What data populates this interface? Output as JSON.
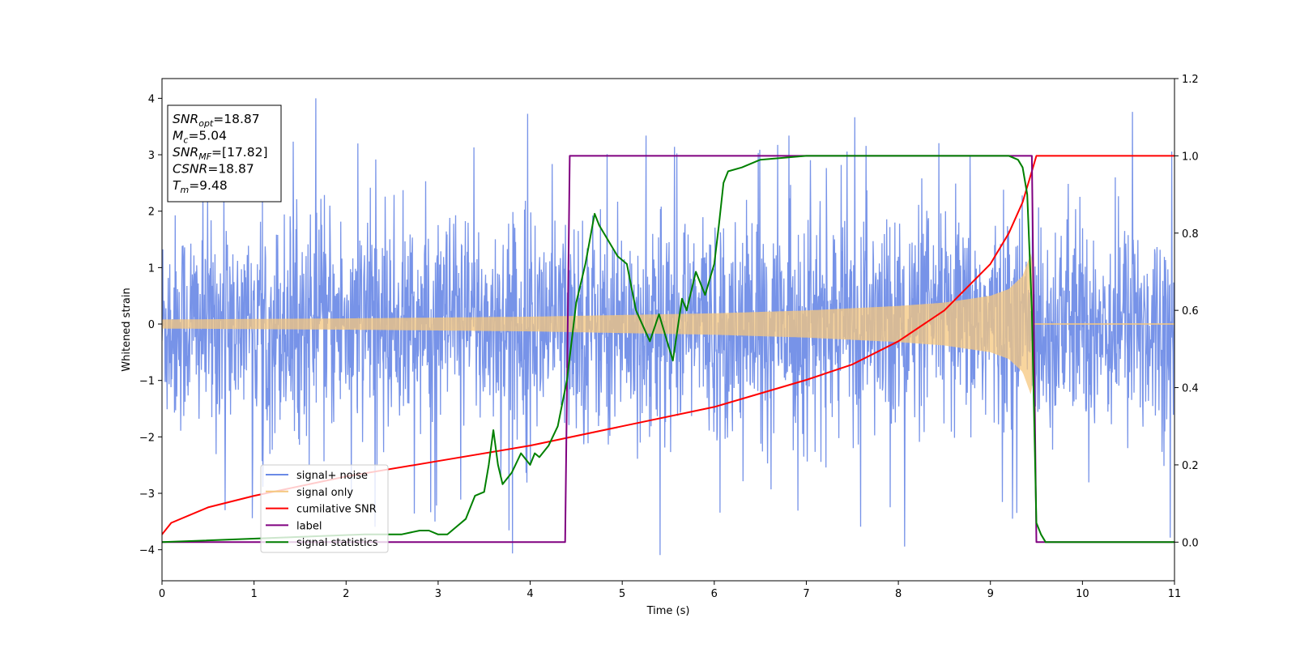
{
  "chart_data": {
    "type": "line",
    "xlabel": "Time (s)",
    "ylabel": "Whitened strain",
    "xlim": [
      0,
      11
    ],
    "ylim_left": [
      -4.55,
      4.35
    ],
    "ylim_right": [
      -0.1,
      1.2
    ],
    "x_ticks": [
      0,
      1,
      2,
      3,
      4,
      5,
      6,
      7,
      8,
      9,
      10,
      11
    ],
    "y_ticks_left": [
      -4,
      -3,
      -2,
      -1,
      0,
      1,
      2,
      3,
      4
    ],
    "y_ticks_right": [
      0.0,
      0.2,
      0.4,
      0.6,
      0.8,
      1.0,
      1.2
    ],
    "legend_position": "lower-left",
    "annotation": {
      "lines": [
        {
          "main": "SNR",
          "sub": "opt",
          "value": "=18.87"
        },
        {
          "main": "M",
          "sub": "c",
          "value": "=5.04"
        },
        {
          "main": "SNR",
          "sub": "MF",
          "value": "=[17.82]"
        },
        {
          "main": "CSNR",
          "sub": "",
          "value": "=18.87"
        },
        {
          "main": "T",
          "sub": "m",
          "value": "=9.48"
        }
      ]
    },
    "series": [
      {
        "name": "signal+ noise",
        "axis": "left",
        "color": "#6b8ae6",
        "description_points": "dense noise approx ±1.5 with spikes up to ±4",
        "envelope": [
          [
            0,
            1.4
          ],
          [
            11,
            1.4
          ]
        ]
      },
      {
        "name": "signal only",
        "axis": "left",
        "color": "#f5c77e",
        "envelope": [
          [
            0,
            0.08
          ],
          [
            2,
            0.1
          ],
          [
            4,
            0.13
          ],
          [
            6,
            0.19
          ],
          [
            7,
            0.24
          ],
          [
            8,
            0.32
          ],
          [
            8.5,
            0.38
          ],
          [
            9,
            0.5
          ],
          [
            9.2,
            0.62
          ],
          [
            9.35,
            0.85
          ],
          [
            9.45,
            1.3
          ],
          [
            9.48,
            0.0
          ],
          [
            11,
            0.0
          ]
        ]
      },
      {
        "name": "cumilative SNR",
        "axis": "right",
        "color": "#ff0000",
        "x": [
          0,
          0.1,
          0.5,
          1,
          2,
          3,
          4,
          5,
          6,
          7,
          7.5,
          8,
          8.5,
          9,
          9.2,
          9.35,
          9.45,
          9.5,
          11
        ],
        "y": [
          0.02,
          0.05,
          0.09,
          0.12,
          0.17,
          0.21,
          0.25,
          0.3,
          0.35,
          0.42,
          0.46,
          0.52,
          0.6,
          0.72,
          0.8,
          0.88,
          0.96,
          1.0,
          1.0
        ]
      },
      {
        "name": "label",
        "axis": "right",
        "color": "#800080",
        "x": [
          0,
          4.38,
          4.43,
          9.45,
          9.5,
          11
        ],
        "y": [
          0,
          0,
          1,
          1,
          0,
          0
        ]
      },
      {
        "name": "signal statistics",
        "axis": "right",
        "color": "#008000",
        "x": [
          0,
          2.2,
          2.4,
          2.6,
          2.8,
          2.9,
          3.0,
          3.1,
          3.2,
          3.3,
          3.4,
          3.5,
          3.55,
          3.6,
          3.65,
          3.7,
          3.8,
          3.9,
          4.0,
          4.05,
          4.1,
          4.2,
          4.3,
          4.4,
          4.5,
          4.6,
          4.7,
          4.75,
          4.85,
          4.95,
          5.05,
          5.15,
          5.3,
          5.4,
          5.55,
          5.65,
          5.7,
          5.8,
          5.9,
          6.0,
          6.05,
          6.1,
          6.15,
          6.3,
          6.5,
          7.0,
          9.2,
          9.3,
          9.35,
          9.4,
          9.45,
          9.5,
          9.55,
          9.6,
          11
        ],
        "y": [
          0,
          0.02,
          0.02,
          0.02,
          0.03,
          0.03,
          0.02,
          0.02,
          0.04,
          0.06,
          0.12,
          0.13,
          0.2,
          0.29,
          0.2,
          0.15,
          0.18,
          0.23,
          0.2,
          0.23,
          0.22,
          0.25,
          0.3,
          0.42,
          0.62,
          0.72,
          0.85,
          0.82,
          0.78,
          0.74,
          0.72,
          0.6,
          0.52,
          0.59,
          0.47,
          0.63,
          0.6,
          0.7,
          0.64,
          0.72,
          0.82,
          0.93,
          0.96,
          0.97,
          0.99,
          1.0,
          1.0,
          0.99,
          0.97,
          0.9,
          0.6,
          0.05,
          0.02,
          0.0,
          0.0
        ]
      }
    ]
  }
}
